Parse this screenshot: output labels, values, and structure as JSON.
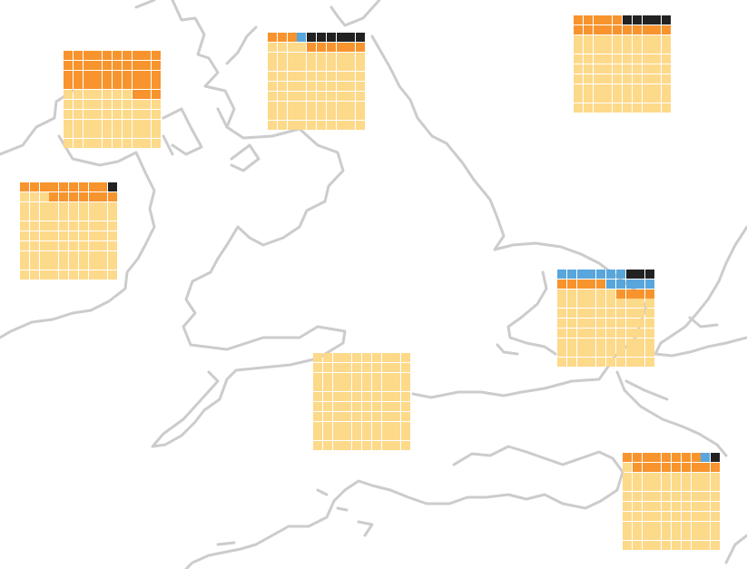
{
  "map": {
    "coastline_color": "#cccccc",
    "background": "#ffffff"
  },
  "legend_colors": {
    "light": "#fdd98a",
    "orange": "#f7942d",
    "blue": "#59a6dc",
    "black": "#222222"
  },
  "waffles": [
    {
      "id": "north-west",
      "light": 57,
      "orange": 43,
      "blue": 0,
      "black": 0
    },
    {
      "id": "north-east",
      "light": 84,
      "orange": 9,
      "blue": 1,
      "black": 6
    },
    {
      "id": "far-north-east",
      "light": 80,
      "orange": 15,
      "blue": 0,
      "black": 5
    },
    {
      "id": "west",
      "light": 83,
      "orange": 16,
      "blue": 0,
      "black": 1
    },
    {
      "id": "east",
      "light": 76,
      "orange": 9,
      "blue": 12,
      "black": 3
    },
    {
      "id": "south-west",
      "light": 100,
      "orange": 0,
      "blue": 0,
      "black": 0
    },
    {
      "id": "south-east",
      "light": 81,
      "orange": 17,
      "blue": 1,
      "black": 1
    }
  ]
}
